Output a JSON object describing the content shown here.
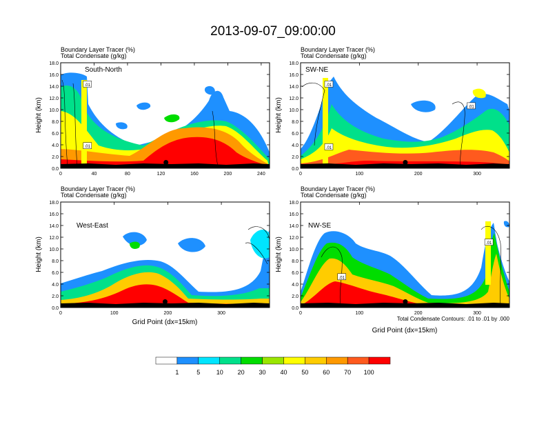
{
  "figure": {
    "title": "2013-09-07_09:00:00",
    "contour_note": "Total Condensate Contours: .01 to .01 by .000"
  },
  "colorbar": {
    "labels": [
      "1",
      "5",
      "10",
      "20",
      "30",
      "40",
      "50",
      "60",
      "70",
      "100"
    ],
    "colors": [
      "#ffffff",
      "#1e90ff",
      "#00e5ff",
      "#00e08a",
      "#00dd00",
      "#9ae600",
      "#ffff00",
      "#ffcc00",
      "#ff9900",
      "#ff5a1e",
      "#ff0000"
    ]
  },
  "chart_data": [
    {
      "type": "heatmap",
      "panel": "South-North",
      "subtitle1": "Boundary Layer Tracer   (%)",
      "subtitle2": "Total Condensate   (g/kg)",
      "ylabel": "Height (km)",
      "xlabel": "",
      "xlim": [
        0,
        250
      ],
      "ylim": [
        0,
        18
      ],
      "xticks": [
        "0",
        "40",
        "80",
        "120",
        "160",
        "200",
        "240"
      ],
      "xtick_values": [
        0,
        40,
        80,
        120,
        160,
        200,
        240
      ],
      "yticks": [
        "0.0",
        "2.0",
        "4.0",
        "6.0",
        "8.0",
        "10.0",
        "12.0",
        "14.0",
        "16.0",
        "18.0"
      ],
      "contour_labels": [
        ".01",
        ".01"
      ],
      "contour_label_points": [
        [
          32,
          14.3
        ],
        [
          32,
          3.8
        ]
      ],
      "location_marker": [
        126,
        1.0
      ]
    },
    {
      "type": "heatmap",
      "panel": "SW-NE",
      "subtitle1": "Boundary Layer Tracer   (%)",
      "subtitle2": "Total Condensate   (g/kg)",
      "ylabel": "Height (km)",
      "xlabel": "",
      "xlim": [
        0,
        355
      ],
      "ylim": [
        0,
        18
      ],
      "xticks": [
        "0",
        "100",
        "200",
        "300"
      ],
      "xtick_values": [
        0,
        100,
        200,
        300
      ],
      "yticks": [
        "0.0",
        "2.0",
        "4.0",
        "6.0",
        "8.0",
        "10.0",
        "12.0",
        "14.0",
        "16.0",
        "18.0"
      ],
      "contour_labels": [
        ".01",
        ".01",
        ".01"
      ],
      "contour_label_points": [
        [
          48,
          14.3
        ],
        [
          48,
          3.6
        ],
        [
          290,
          10.6
        ]
      ],
      "location_marker": [
        178,
        1.0
      ]
    },
    {
      "type": "heatmap",
      "panel": "West-East",
      "subtitle1": "Boundary Layer Tracer   (%)",
      "subtitle2": "Total Condensate   (g/kg)",
      "ylabel": "Height (km)",
      "xlabel": "Grid Point (dx=15km)",
      "xlim": [
        0,
        390
      ],
      "ylim": [
        0,
        18
      ],
      "xticks": [
        "0",
        "100",
        "200",
        "300"
      ],
      "xtick_values": [
        0,
        100,
        200,
        300
      ],
      "yticks": [
        "0.0",
        "2.0",
        "4.0",
        "6.0",
        "8.0",
        "10.0",
        "12.0",
        "14.0",
        "16.0",
        "18.0"
      ],
      "contour_labels": [],
      "contour_label_points": [],
      "location_marker": [
        195,
        1.0
      ]
    },
    {
      "type": "heatmap",
      "panel": "NW-SE",
      "subtitle1": "Boundary Layer Tracer   (%)",
      "subtitle2": "Total Condensate   (g/kg)",
      "ylabel": "Height (km)",
      "xlabel": "Grid Point (dx=15km)",
      "xlim": [
        0,
        355
      ],
      "ylim": [
        0,
        18
      ],
      "xticks": [
        "0",
        "100",
        "200",
        "300"
      ],
      "xtick_values": [
        0,
        100,
        200,
        300
      ],
      "yticks": [
        "0.0",
        "2.0",
        "4.0",
        "6.0",
        "8.0",
        "10.0",
        "12.0",
        "14.0",
        "16.0",
        "18.0"
      ],
      "contour_labels": [
        ".01",
        ".01"
      ],
      "contour_label_points": [
        [
          70,
          5.2
        ],
        [
          320,
          11.1
        ]
      ],
      "location_marker": [
        178,
        1.0
      ]
    }
  ]
}
